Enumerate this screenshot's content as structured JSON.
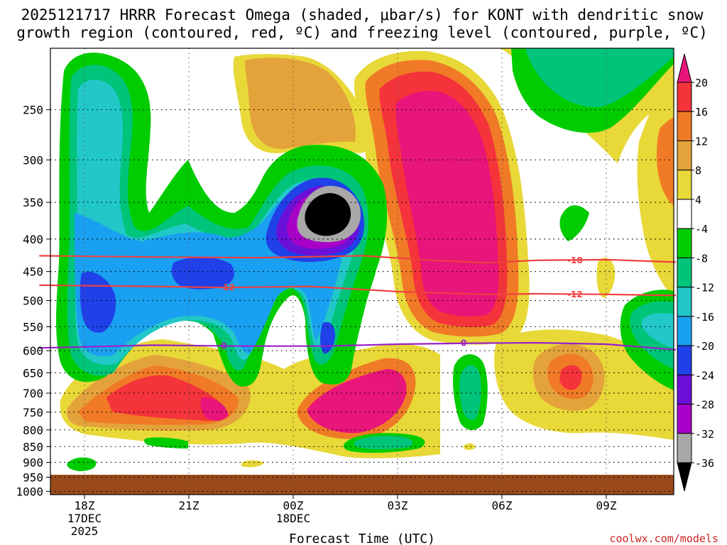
{
  "chart_data": {
    "type": "heatmap",
    "title_line1": "2025121717 HRRR Forecast Omega (shaded, μbar/s) for KONT with dendritic snow",
    "title_line2": "growth region (contoured, red, ºC) and freezing level (contoured, purple, ºC)",
    "xlabel": "Forecast Time (UTC)",
    "ylabel": "",
    "credit": "coolwx.com/models",
    "x_hours": [
      17,
      28
    ],
    "x_ticks": [
      {
        "hour": 18,
        "line1": "18Z",
        "line2": "17DEC",
        "line3": "2025"
      },
      {
        "hour": 21,
        "line1": "21Z",
        "line2": "",
        "line3": ""
      },
      {
        "hour": 24,
        "line1": "00Z",
        "line2": "18DEC",
        "line3": ""
      },
      {
        "hour": 27,
        "line1": "03Z",
        "line2": "",
        "line3": ""
      },
      {
        "hour": 30,
        "line1": "06Z",
        "line2": "",
        "line3": ""
      },
      {
        "hour": 33,
        "line1": "09Z",
        "line2": "",
        "line3": ""
      }
    ],
    "y_pressure_levels_mb": [
      250,
      300,
      350,
      400,
      450,
      500,
      550,
      600,
      650,
      700,
      750,
      800,
      850,
      900,
      950,
      1000
    ],
    "y_range_mb": [
      200,
      1000
    ],
    "x_range_hours": [
      17,
      35
    ],
    "colorbar": {
      "labels": [
        "20",
        "16",
        "12",
        "8",
        "4",
        "-4",
        "-8",
        "-12",
        "-16",
        "-20",
        "-24",
        "-28",
        "-32",
        "-36"
      ],
      "colors": [
        "#e8157a",
        "#f4333a",
        "#f07a26",
        "#e4a33a",
        "#e8d838",
        "#ffffff",
        "#00cc00",
        "#00c47a",
        "#22c8c8",
        "#1aa0f0",
        "#2040e8",
        "#6a10d8",
        "#a800c8",
        "#a8a8a8",
        "#000000"
      ]
    },
    "contours": [
      {
        "name": "dendritic snow growth region",
        "color": "#f04040",
        "labels": [
          "-18",
          "-12"
        ],
        "line_minus18": [
          [
            16.7,
            425
          ],
          [
            20,
            427
          ],
          [
            23,
            428
          ],
          [
            26,
            425
          ],
          [
            28,
            432
          ],
          [
            29.5,
            436
          ],
          [
            31,
            432
          ],
          [
            33,
            431
          ],
          [
            35,
            435
          ]
        ],
        "line_minus12": [
          [
            16.7,
            473
          ],
          [
            20,
            475
          ],
          [
            22,
            477
          ],
          [
            24.5,
            475
          ],
          [
            27,
            484
          ],
          [
            29.5,
            489
          ],
          [
            31,
            488
          ],
          [
            33,
            489
          ],
          [
            35,
            491
          ]
        ]
      },
      {
        "name": "freezing level",
        "color": "#9a20c8",
        "labels": [
          "0",
          "0"
        ],
        "line_zero": [
          [
            16.7,
            594
          ],
          [
            20,
            588
          ],
          [
            22.5,
            590
          ],
          [
            25,
            590
          ],
          [
            27,
            586
          ],
          [
            29,
            584
          ],
          [
            31,
            583
          ],
          [
            33,
            586
          ],
          [
            35,
            598
          ]
        ]
      }
    ],
    "surface_color": "#9a4a1a"
  }
}
